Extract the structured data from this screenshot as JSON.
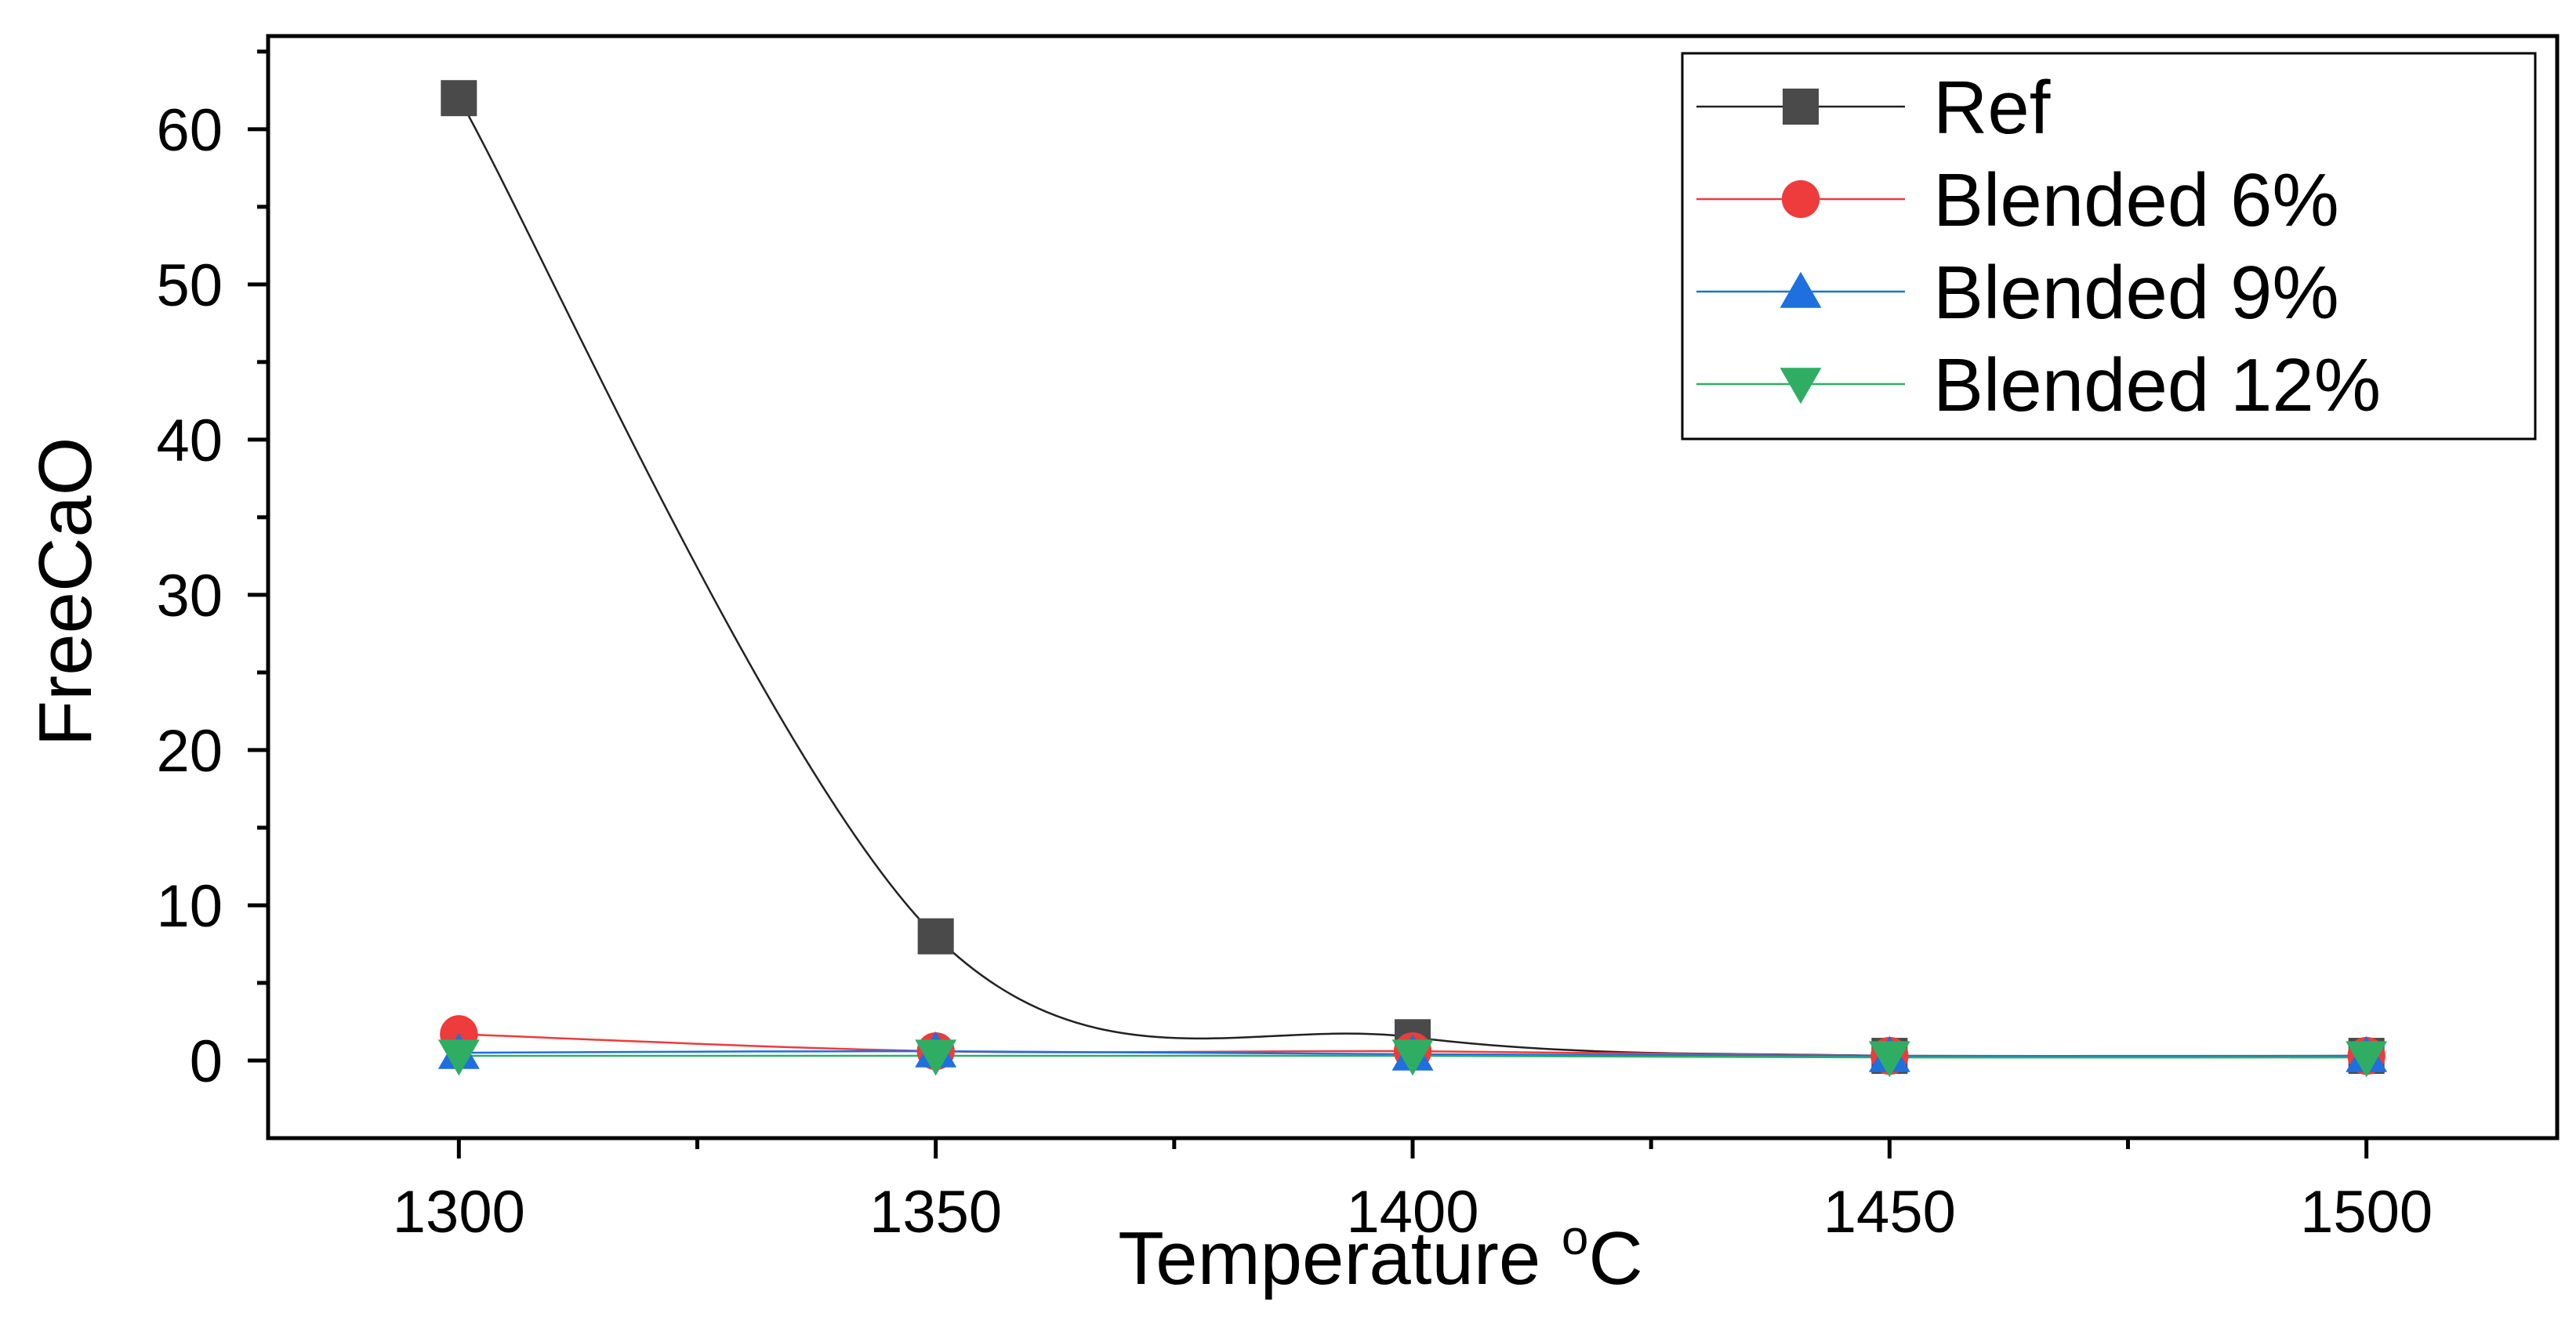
{
  "chart_data": {
    "type": "line",
    "title": "",
    "xlabel": "Temperature",
    "xlabel_unit": "oC",
    "ylabel": "FreeCaO",
    "xlim": [
      1280,
      1520
    ],
    "ylim": [
      -5,
      66
    ],
    "x_ticks": [
      1300,
      1350,
      1400,
      1450,
      1500
    ],
    "y_ticks": [
      0,
      10,
      20,
      30,
      40,
      50,
      60
    ],
    "x_tick_labels": [
      "1300",
      "1350",
      "1400",
      "1450",
      "1500"
    ],
    "y_tick_labels": [
      "0",
      "10",
      "20",
      "30",
      "40",
      "50",
      "60"
    ],
    "grid": false,
    "legend_position": "top-right",
    "smooth_lines": true,
    "x": [
      1300,
      1350,
      1400,
      1450,
      1500
    ],
    "series": [
      {
        "name": "Ref",
        "values": [
          62,
          8,
          1.5,
          0.3,
          0.3
        ],
        "color": "#4a4a4a",
        "line_color": "#222222",
        "marker": "square"
      },
      {
        "name": "Blended 6%",
        "values": [
          1.7,
          0.6,
          0.6,
          0.3,
          0.3
        ],
        "color": "#ee3b3b",
        "line_color": "#ee3b3b",
        "marker": "circle"
      },
      {
        "name": "Blended 9%",
        "values": [
          0.5,
          0.6,
          0.4,
          0.3,
          0.3
        ],
        "color": "#1f6fe0",
        "line_color": "#1f6fe0",
        "marker": "triangle-up"
      },
      {
        "name": "Blended 12%",
        "values": [
          0.3,
          0.3,
          0.3,
          0.2,
          0.2
        ],
        "color": "#2fae63",
        "line_color": "#2fae63",
        "marker": "triangle-down"
      }
    ]
  }
}
